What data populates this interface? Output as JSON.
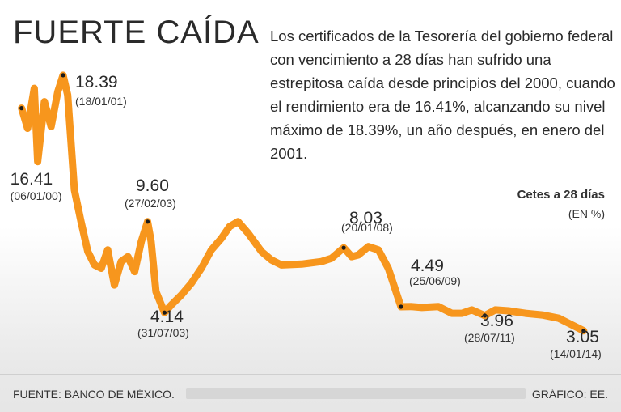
{
  "header": {
    "title": "FUERTE CAÍDA",
    "description": "Los certificados de la Tesorería del gobierno federal con vencimiento a 28 días han sufrido una estrepitosa caída desde principios del 2000, cuando el rendimiento era de 16.41%, alcanzando su nivel máximo de 18.39%, un año después, en enero del 2001."
  },
  "unit": {
    "title": "Cetes a 28 días",
    "subtitle": "(EN %)"
  },
  "footer": {
    "source": "FUENTE: BANCO DE MÉXICO.",
    "credit": "GRÁFICO: EE."
  },
  "colors": {
    "line": "#f7961d",
    "marker": "#1a1a1a",
    "text": "#2a2a2a"
  },
  "chart_data": {
    "type": "line",
    "title": "FUERTE CAÍDA",
    "ylabel": "(EN %)",
    "xlim": [
      "2000-01-01",
      "2014-03-01"
    ],
    "ylim": [
      2.5,
      19.5
    ],
    "grid": false,
    "series": [
      {
        "name": "Cetes a 28 días",
        "points": [
          [
            "2000-01-06",
            16.41
          ],
          [
            "2000-03-01",
            15.2
          ],
          [
            "2000-05-01",
            17.6
          ],
          [
            "2000-06-01",
            13.2
          ],
          [
            "2000-08-01",
            16.8
          ],
          [
            "2000-10-01",
            15.3
          ],
          [
            "2000-12-01",
            17.4
          ],
          [
            "2001-01-18",
            18.39
          ],
          [
            "2001-03-01",
            17.2
          ],
          [
            "2001-05-01",
            11.5
          ],
          [
            "2001-07-01",
            9.6
          ],
          [
            "2001-09-01",
            7.8
          ],
          [
            "2001-11-01",
            7.0
          ],
          [
            "2002-01-01",
            6.8
          ],
          [
            "2002-03-01",
            7.9
          ],
          [
            "2002-05-01",
            5.8
          ],
          [
            "2002-07-01",
            7.2
          ],
          [
            "2002-09-01",
            7.5
          ],
          [
            "2002-11-01",
            6.6
          ],
          [
            "2003-01-01",
            8.4
          ],
          [
            "2003-02-27",
            9.6
          ],
          [
            "2003-04-01",
            8.4
          ],
          [
            "2003-05-15",
            5.4
          ],
          [
            "2003-07-31",
            4.14
          ],
          [
            "2003-10-01",
            4.6
          ],
          [
            "2004-01-01",
            5.2
          ],
          [
            "2004-04-01",
            5.9
          ],
          [
            "2004-07-01",
            6.8
          ],
          [
            "2004-10-01",
            7.9
          ],
          [
            "2005-01-01",
            8.6
          ],
          [
            "2005-03-15",
            9.3
          ],
          [
            "2005-06-01",
            9.6
          ],
          [
            "2005-09-01",
            8.9
          ],
          [
            "2006-01-01",
            7.8
          ],
          [
            "2006-04-01",
            7.3
          ],
          [
            "2006-07-01",
            7.0
          ],
          [
            "2007-01-01",
            7.05
          ],
          [
            "2007-07-01",
            7.2
          ],
          [
            "2007-10-01",
            7.4
          ],
          [
            "2008-01-20",
            8.03
          ],
          [
            "2008-04-01",
            7.5
          ],
          [
            "2008-06-01",
            7.6
          ],
          [
            "2008-09-01",
            8.1
          ],
          [
            "2008-12-01",
            7.9
          ],
          [
            "2009-03-01",
            6.8
          ],
          [
            "2009-06-25",
            4.49
          ],
          [
            "2009-10-01",
            4.5
          ],
          [
            "2010-01-01",
            4.45
          ],
          [
            "2010-06-01",
            4.5
          ],
          [
            "2010-10-01",
            4.1
          ],
          [
            "2011-01-01",
            4.1
          ],
          [
            "2011-04-01",
            4.3
          ],
          [
            "2011-07-28",
            3.96
          ],
          [
            "2011-11-01",
            4.3
          ],
          [
            "2012-03-01",
            4.25
          ],
          [
            "2012-08-01",
            4.1
          ],
          [
            "2013-01-01",
            4.0
          ],
          [
            "2013-06-01",
            3.8
          ],
          [
            "2013-10-01",
            3.4
          ],
          [
            "2014-01-14",
            3.05
          ]
        ]
      }
    ],
    "annotations": [
      {
        "value": "16.41",
        "date": "(06/01/00)",
        "x": "2000-01-06",
        "y": 16.41
      },
      {
        "value": "18.39",
        "date": "(18/01/01)",
        "x": "2001-01-18",
        "y": 18.39
      },
      {
        "value": "9.60",
        "date": "(27/02/03)",
        "x": "2003-02-27",
        "y": 9.6
      },
      {
        "value": "4.14",
        "date": "(31/07/03)",
        "x": "2003-07-31",
        "y": 4.14
      },
      {
        "value": "8.03",
        "date": "(20/01/08)",
        "x": "2008-01-20",
        "y": 8.03
      },
      {
        "value": "4.49",
        "date": "(25/06/09)",
        "x": "2009-06-25",
        "y": 4.49
      },
      {
        "value": "3.96",
        "date": "(28/07/11)",
        "x": "2011-07-28",
        "y": 3.96
      },
      {
        "value": "3.05",
        "date": "(14/01/14)",
        "x": "2014-01-14",
        "y": 3.05
      }
    ]
  }
}
